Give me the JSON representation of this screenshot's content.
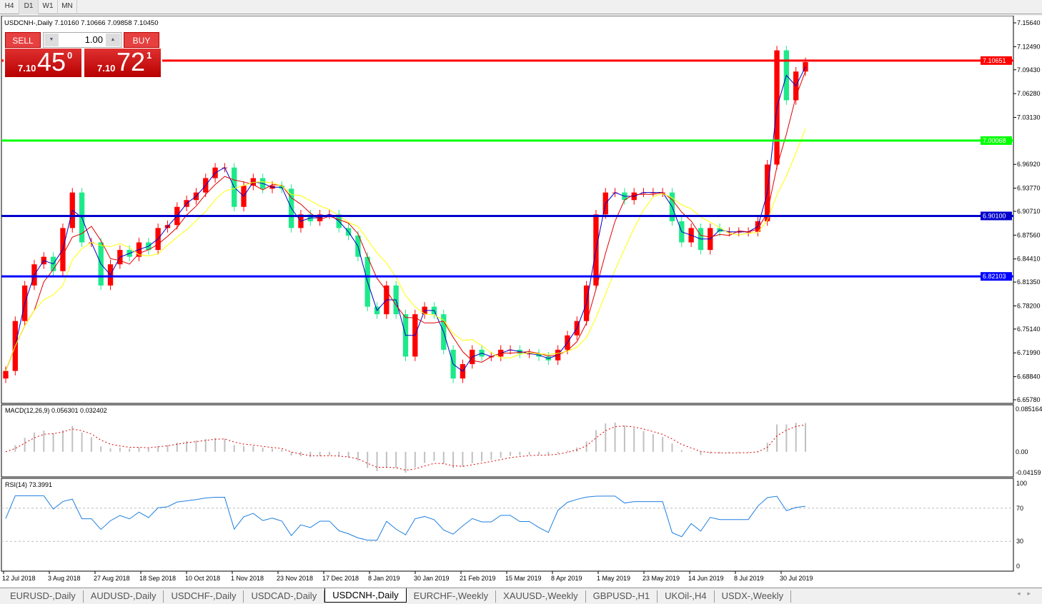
{
  "timeframes": [
    {
      "label": "H4"
    },
    {
      "label": "D1",
      "active": true
    },
    {
      "label": "W1"
    },
    {
      "label": "MN"
    }
  ],
  "chart_title": "USDCNH-,Daily  7.10160 7.10666 7.09858 7.10450",
  "trade_panel": {
    "sell_label": "SELL",
    "buy_label": "BUY",
    "lots": "1.00",
    "sell_price": {
      "small": "7.10",
      "big": "45",
      "sup": "0"
    },
    "buy_price": {
      "small": "7.10",
      "big": "72",
      "sup": "1"
    }
  },
  "colors": {
    "bull": "#ff0000",
    "bear": "#1de98b",
    "ma_fast": "#0000c8",
    "ma_mid": "#e00000",
    "ma_slow": "#ffff00",
    "macd_hist": "#c0c0c0",
    "macd_signal": "#e00000",
    "rsi": "#1e7fe0"
  },
  "tabs": [
    {
      "label": "EURUSD-,Daily"
    },
    {
      "label": "AUDUSD-,Daily"
    },
    {
      "label": "USDCHF-,Daily"
    },
    {
      "label": "USDCAD-,Daily"
    },
    {
      "label": "USDCNH-,Daily",
      "active": true
    },
    {
      "label": "EURCHF-,Weekly"
    },
    {
      "label": "XAUUSD-,Weekly"
    },
    {
      "label": "GBPUSD-,H1"
    },
    {
      "label": "UKOil-,H4"
    },
    {
      "label": "USDX-,Weekly"
    }
  ],
  "chart_data": {
    "type": "candlestick",
    "symbol": "USDCNH-",
    "timeframe": "Daily",
    "ylim": [
      6.6578,
      7.1564
    ],
    "y_ticks": [
      "7.15640",
      "7.12490",
      "7.09430",
      "7.06280",
      "7.03130",
      "6.96920",
      "6.93770",
      "6.90710",
      "6.87560",
      "6.84410",
      "6.81350",
      "6.78200",
      "6.75140",
      "6.71990",
      "6.68840",
      "6.65780"
    ],
    "x_ticks": [
      "12 Jul 2018",
      "3 Aug 2018",
      "27 Aug 2018",
      "18 Sep 2018",
      "10 Oct 2018",
      "1 Nov 2018",
      "23 Nov 2018",
      "17 Dec 2018",
      "8 Jan 2019",
      "30 Jan 2019",
      "21 Feb 2019",
      "15 Mar 2019",
      "8 Apr 2019",
      "1 May 2019",
      "23 May 2019",
      "14 Jun 2019",
      "8 Jul 2019",
      "30 Jul 2019"
    ],
    "closes": [
      6.696,
      6.762,
      6.809,
      6.837,
      6.847,
      6.828,
      6.885,
      6.932,
      6.866,
      6.866,
      6.809,
      6.837,
      6.856,
      6.847,
      6.866,
      6.856,
      6.885,
      6.889,
      6.913,
      6.922,
      6.932,
      6.951,
      6.965,
      6.965,
      6.913,
      6.941,
      6.951,
      6.937,
      6.941,
      6.937,
      6.885,
      6.903,
      6.894,
      6.903,
      6.903,
      6.885,
      6.875,
      6.847,
      6.781,
      6.771,
      6.809,
      6.771,
      6.715,
      6.771,
      6.781,
      6.771,
      6.724,
      6.686,
      6.705,
      6.724,
      6.715,
      6.715,
      6.724,
      6.724,
      6.719,
      6.719,
      6.715,
      6.71,
      6.724,
      6.743,
      6.762,
      6.809,
      6.903,
      6.932,
      6.932,
      6.922,
      6.932,
      6.932,
      6.932,
      6.932,
      6.894,
      6.866,
      6.885,
      6.856,
      6.885,
      6.88,
      6.88,
      6.88,
      6.88,
      6.894,
      6.969,
      7.12,
      7.054,
      7.092,
      7.1045
    ],
    "horizontal_lines": [
      {
        "label": "7.10651",
        "value": 7.10651,
        "color": "#ff0000"
      },
      {
        "label": "7.00068",
        "value": 7.00068,
        "color": "#00ff00"
      },
      {
        "label": "6.90100",
        "value": 6.901,
        "color": "#0000cc"
      },
      {
        "label": "6.82103",
        "value": 6.82103,
        "color": "#0000ff"
      }
    ],
    "macd": {
      "label": "MACD(12,26,9) 0.056301 0.032402",
      "ylim": [
        -0.04159,
        0.085164
      ],
      "ticks": [
        "0.085164",
        "0.00",
        "-0.04159"
      ]
    },
    "rsi": {
      "label": "RSI(14) 73.3991",
      "ylim": [
        0,
        100
      ],
      "ticks": [
        "100",
        "70",
        "30",
        "0"
      ],
      "levels": [
        70,
        30
      ]
    }
  }
}
